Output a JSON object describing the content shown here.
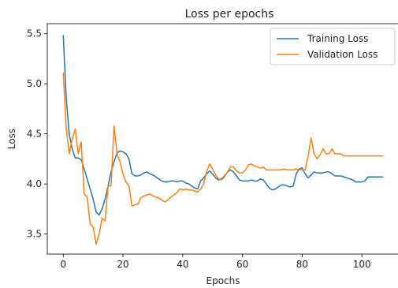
{
  "chart_data": {
    "type": "line",
    "title": "Loss per epochs",
    "xlabel": "Epochs",
    "ylabel": "Loss",
    "xlim": [
      -5.35,
      112.35
    ],
    "ylim": [
      3.3,
      5.6
    ],
    "xticks": [
      0,
      20,
      40,
      60,
      80,
      100
    ],
    "yticks": [
      3.5,
      4.0,
      4.5,
      5.0,
      5.5
    ],
    "xtick_labels": [
      "0",
      "20",
      "40",
      "60",
      "80",
      "100"
    ],
    "ytick_labels": [
      "3.5",
      "4.0",
      "4.5",
      "5.0",
      "5.5"
    ],
    "grid": false,
    "legend_position": "top-right",
    "series": [
      {
        "name": "Training Loss",
        "color": "#1f77b4",
        "x": [
          0,
          1,
          2,
          3,
          4,
          5,
          6,
          7,
          8,
          9,
          10,
          11,
          12,
          13,
          14,
          15,
          16,
          17,
          18,
          19,
          20,
          21,
          22,
          23,
          24,
          25,
          26,
          27,
          28,
          29,
          30,
          31,
          32,
          33,
          34,
          35,
          36,
          37,
          38,
          39,
          40,
          41,
          42,
          43,
          44,
          45,
          46,
          47,
          48,
          49,
          50,
          51,
          52,
          53,
          54,
          55,
          56,
          57,
          58,
          59,
          60,
          61,
          62,
          63,
          64,
          65,
          66,
          67,
          68,
          69,
          70,
          71,
          72,
          73,
          74,
          75,
          76,
          77,
          78,
          79,
          80,
          81,
          82,
          83,
          84,
          85,
          86,
          87,
          88,
          89,
          90,
          91,
          92,
          93,
          94,
          95,
          96,
          97,
          98,
          99,
          100,
          101,
          102,
          103,
          104,
          105,
          106,
          107
        ],
        "values": [
          5.48,
          4.85,
          4.5,
          4.35,
          4.26,
          4.26,
          4.24,
          4.15,
          4.05,
          3.95,
          3.85,
          3.72,
          3.69,
          3.75,
          3.85,
          3.98,
          4.12,
          4.22,
          4.31,
          4.33,
          4.32,
          4.3,
          4.25,
          4.1,
          4.08,
          4.08,
          4.09,
          4.11,
          4.12,
          4.1,
          4.09,
          4.07,
          4.05,
          4.03,
          4.02,
          4.02,
          4.03,
          4.03,
          4.02,
          4.03,
          4.03,
          4.01,
          4.0,
          3.98,
          3.96,
          3.95,
          4.03,
          4.06,
          4.1,
          4.13,
          4.1,
          4.06,
          4.04,
          4.05,
          4.08,
          4.12,
          4.14,
          4.12,
          4.08,
          4.04,
          4.03,
          4.03,
          4.03,
          4.04,
          4.03,
          4.03,
          4.05,
          4.04,
          4.0,
          3.96,
          3.94,
          3.95,
          3.97,
          3.99,
          3.99,
          3.98,
          3.97,
          3.98,
          4.1,
          4.15,
          4.16,
          4.1,
          4.06,
          4.09,
          4.12,
          4.11,
          4.11,
          4.11,
          4.12,
          4.12,
          4.1,
          4.08,
          4.08,
          4.08,
          4.07,
          4.06,
          4.05,
          4.04,
          4.02,
          4.02,
          4.02,
          4.03,
          4.07,
          4.07,
          4.07,
          4.07,
          4.07,
          4.07
        ]
      },
      {
        "name": "Validation Loss",
        "color": "#ff7f0e",
        "x": [
          0,
          1,
          2,
          3,
          4,
          5,
          6,
          7,
          8,
          9,
          10,
          11,
          12,
          13,
          14,
          15,
          16,
          17,
          18,
          19,
          20,
          21,
          22,
          23,
          24,
          25,
          26,
          27,
          28,
          29,
          30,
          31,
          32,
          33,
          34,
          35,
          36,
          37,
          38,
          39,
          40,
          41,
          42,
          43,
          44,
          45,
          46,
          47,
          48,
          49,
          50,
          51,
          52,
          53,
          54,
          55,
          56,
          57,
          58,
          59,
          60,
          61,
          62,
          63,
          64,
          65,
          66,
          67,
          68,
          69,
          70,
          71,
          72,
          73,
          74,
          75,
          76,
          77,
          78,
          79,
          80,
          81,
          82,
          83,
          84,
          85,
          86,
          87,
          88,
          89,
          90,
          91,
          92,
          93,
          94,
          95,
          96,
          97,
          98,
          99,
          100,
          101,
          102,
          103,
          104,
          105,
          106,
          107
        ],
        "values": [
          5.11,
          4.55,
          4.3,
          4.45,
          4.55,
          4.3,
          4.42,
          3.9,
          3.87,
          3.6,
          3.57,
          3.4,
          3.5,
          3.66,
          3.63,
          3.98,
          3.98,
          4.58,
          4.3,
          4.22,
          4.1,
          4.02,
          3.98,
          3.78,
          3.79,
          3.8,
          3.86,
          3.88,
          3.89,
          3.9,
          3.88,
          3.87,
          3.86,
          3.84,
          3.82,
          3.84,
          3.87,
          3.89,
          3.91,
          3.95,
          3.94,
          3.95,
          3.94,
          3.94,
          3.93,
          3.92,
          3.95,
          4.0,
          4.12,
          4.2,
          4.15,
          4.09,
          4.05,
          4.04,
          4.07,
          4.12,
          4.17,
          4.17,
          4.13,
          4.11,
          4.11,
          4.14,
          4.19,
          4.2,
          4.18,
          4.17,
          4.16,
          4.17,
          4.14,
          4.14,
          4.14,
          4.14,
          4.14,
          4.14,
          4.15,
          4.14,
          4.14,
          4.14,
          4.15,
          4.14,
          4.14,
          4.14,
          4.28,
          4.46,
          4.3,
          4.25,
          4.29,
          4.35,
          4.3,
          4.3,
          4.35,
          4.3,
          4.3,
          4.3,
          4.28,
          4.28,
          4.28,
          4.28,
          4.28,
          4.28,
          4.28,
          4.28,
          4.28,
          4.28,
          4.28,
          4.28,
          4.28,
          4.28
        ]
      }
    ]
  }
}
